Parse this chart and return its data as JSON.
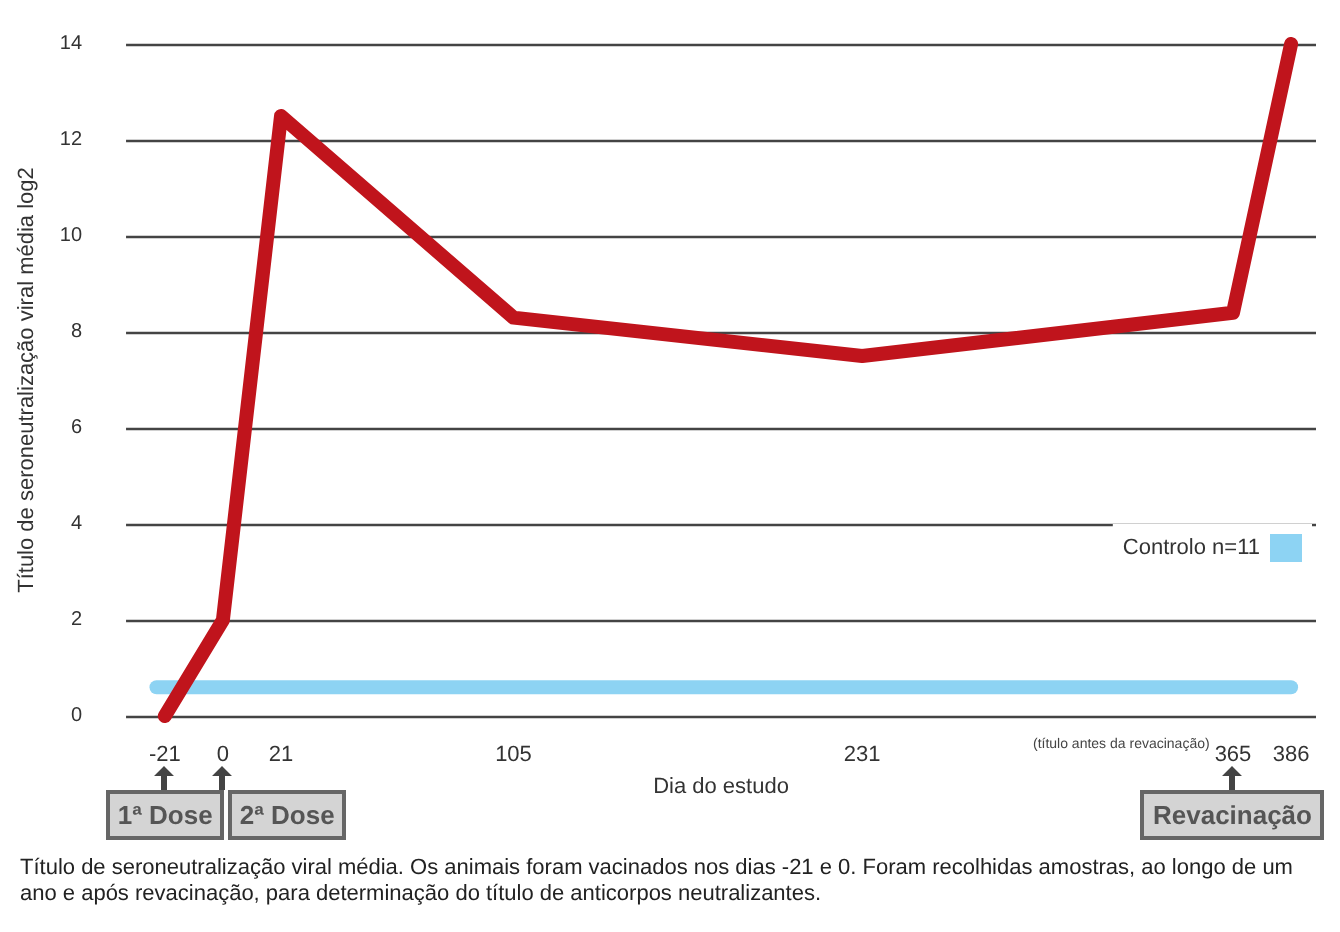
{
  "chart_data": {
    "type": "line",
    "ylabel": "Título de seroneutralização viral média log2",
    "xlabel": "Dia do estudo",
    "x": [
      -21,
      0,
      21,
      105,
      231,
      365,
      386
    ],
    "series": [
      {
        "name": "Controlo n=11",
        "color": "#8dd3f3",
        "x": [
          -24,
          386
        ],
        "values": [
          0.6,
          0.6
        ]
      },
      {
        "color": "#c0141c",
        "values": [
          0,
          2,
          12.5,
          8.3,
          7.5,
          8.4,
          14
        ]
      }
    ],
    "xlim": [
      -35,
      395
    ],
    "xticks": [
      -21,
      0,
      21,
      105,
      231,
      365,
      386
    ],
    "ylim": [
      0,
      14
    ],
    "yticks": [
      0,
      2,
      4,
      6,
      8,
      10,
      12,
      14
    ],
    "grid": "y",
    "legend": "bottom right",
    "line_style": "solid",
    "annotations": [
      "1ª Dose",
      "2ª Dose",
      "Revacinação",
      "(título antes da revacinação)",
      "Título de seroneutralização viral média. Os animais foram vacinados nos dias -21 e 0. Foram recolhidas amostras, ao longo de um ano e após revacinação, para determinação do título de anticorpos neutralizantes."
    ]
  }
}
